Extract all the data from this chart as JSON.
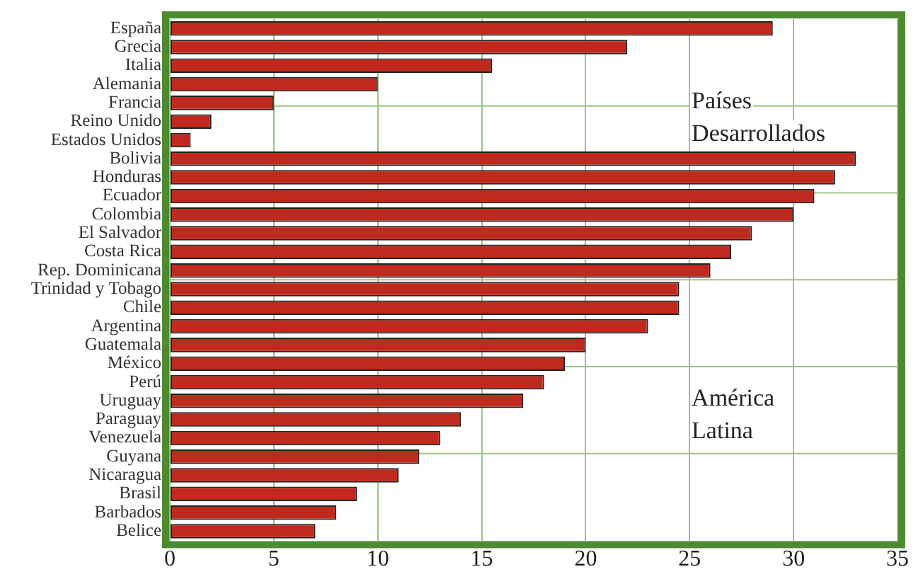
{
  "chart_data": {
    "type": "bar",
    "orientation": "horizontal",
    "categories": [
      "España",
      "Grecia",
      "Italia",
      "Alemania",
      "Francia",
      "Reino Unido",
      "Estados Unidos",
      "Bolivia",
      "Honduras",
      "Ecuador",
      "Colombia",
      "El Salvador",
      "Costa Rica",
      "Rep. Dominicana",
      "Trinidad y Tobago",
      "Chile",
      "Argentina",
      "Guatemala",
      "México",
      "Perú",
      "Uruguay",
      "Paraguay",
      "Venezuela",
      "Guyana",
      "Nicaragua",
      "Brasil",
      "Barbados",
      "Belice"
    ],
    "values": [
      29,
      22,
      15.5,
      10,
      5,
      2,
      1,
      33,
      32,
      31,
      30,
      28,
      27,
      26,
      24.5,
      24.5,
      23,
      20,
      19,
      18,
      17,
      14,
      13,
      12,
      11,
      9,
      8,
      7
    ],
    "color": "#c0291d",
    "xlim": [
      0,
      35
    ],
    "xticks": [
      0,
      5,
      10,
      15,
      20,
      25,
      30,
      35
    ],
    "grid": true,
    "legend": false,
    "annotations": [
      "Países Desarrollados",
      "América Latina"
    ]
  }
}
